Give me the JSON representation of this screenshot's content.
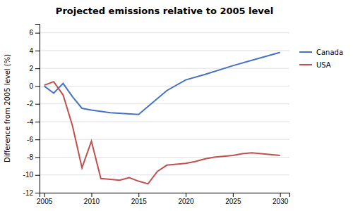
{
  "chart_data": {
    "type": "line",
    "title": "Projected emissions relative to 2005 level",
    "ylabel": "Difference from 2005 level (%)",
    "series": [
      {
        "name": "Canada",
        "color": "#4472C4",
        "x": [
          2005,
          2006,
          2007,
          2008,
          2009,
          2010,
          2012,
          2015,
          2018,
          2020,
          2022,
          2025,
          2027,
          2030
        ],
        "values": [
          0.0,
          -0.8,
          0.3,
          -1.2,
          -2.5,
          -2.7,
          -3.0,
          -3.2,
          -0.5,
          0.7,
          1.3,
          2.3,
          2.9,
          3.8
        ]
      },
      {
        "name": "USA",
        "color": "#C0504D",
        "x": [
          2005,
          2006,
          2007,
          2008,
          2009,
          2010,
          2011,
          2012,
          2013,
          2014,
          2015,
          2016,
          2017,
          2018,
          2019,
          2020,
          2021,
          2022,
          2023,
          2024,
          2025,
          2026,
          2027,
          2028,
          2029,
          2030
        ],
        "values": [
          0.1,
          0.5,
          -1.0,
          -4.5,
          -9.2,
          -6.2,
          -10.4,
          -10.5,
          -10.6,
          -10.3,
          -10.7,
          -11.0,
          -9.6,
          -8.9,
          -8.8,
          -8.7,
          -8.5,
          -8.2,
          -8.0,
          -7.9,
          -7.8,
          -7.6,
          -7.5,
          -7.6,
          -7.7,
          -7.8
        ]
      }
    ],
    "xlim": [
      2004.5,
      2031
    ],
    "xticks": [
      2005,
      2010,
      2015,
      2020,
      2025,
      2030
    ],
    "ylim": [
      -12,
      7
    ],
    "yticks": [
      -12,
      -10,
      -8,
      -6,
      -4,
      -2,
      0,
      2,
      4,
      6
    ],
    "grid": true,
    "legend": "right"
  }
}
